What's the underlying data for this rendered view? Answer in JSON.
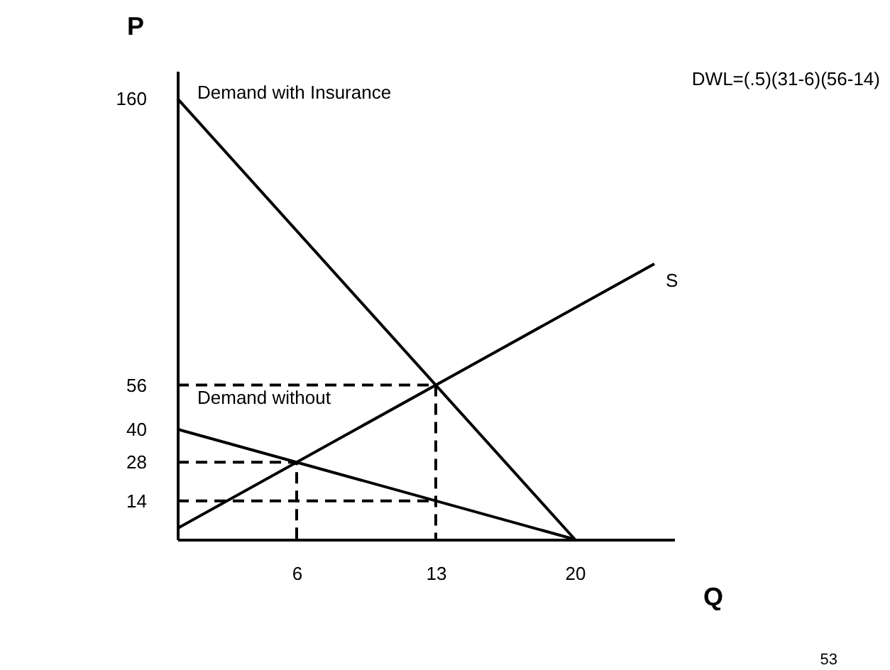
{
  "chart_data": {
    "type": "line",
    "xlabel": "Q",
    "ylabel": "P",
    "xlim": [
      0,
      25
    ],
    "ylim": [
      0,
      170
    ],
    "xticks": [
      6,
      13,
      20
    ],
    "yticks": [
      14,
      28,
      40,
      56,
      160
    ],
    "series": [
      {
        "name": "Demand with Insurance",
        "color": "#000000",
        "x": [
          0,
          20
        ],
        "values": [
          160,
          0
        ],
        "line_style": "solid"
      },
      {
        "name": "Demand without",
        "color": "#000000",
        "x": [
          0,
          20
        ],
        "values": [
          40,
          0
        ],
        "line_style": "solid"
      },
      {
        "name": "S",
        "color": "#000000",
        "x": [
          0,
          24
        ],
        "values": [
          4,
          100
        ],
        "line_style": "solid"
      },
      {
        "color": "#000000",
        "x": [
          0,
          13,
          13
        ],
        "values": [
          56,
          56,
          0
        ],
        "line_style": "dashed"
      },
      {
        "color": "#000000",
        "x": [
          0,
          6,
          6
        ],
        "values": [
          28,
          28,
          0
        ],
        "line_style": "dashed"
      },
      {
        "color": "#000000",
        "x": [
          0,
          13
        ],
        "values": [
          14,
          14
        ],
        "line_style": "dashed"
      }
    ],
    "annotations": [
      "DWL=(.5)(31-6)(56-14)",
      "53"
    ]
  }
}
